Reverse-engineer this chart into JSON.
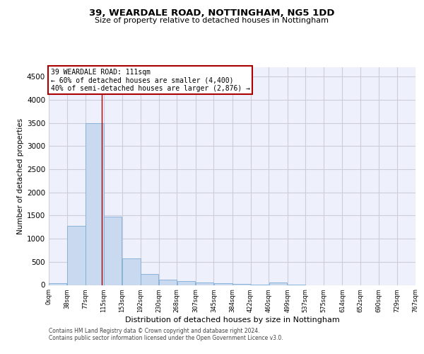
{
  "title1": "39, WEARDALE ROAD, NOTTINGHAM, NG5 1DD",
  "title2": "Size of property relative to detached houses in Nottingham",
  "xlabel": "Distribution of detached houses by size in Nottingham",
  "ylabel": "Number of detached properties",
  "footer1": "Contains HM Land Registry data © Crown copyright and database right 2024.",
  "footer2": "Contains public sector information licensed under the Open Government Licence v3.0.",
  "bar_edges": [
    0,
    38,
    77,
    115,
    153,
    192,
    230,
    268,
    307,
    345,
    384,
    422,
    460,
    499,
    537,
    575,
    614,
    652,
    690,
    729,
    767
  ],
  "bar_values": [
    40,
    1280,
    3500,
    1480,
    580,
    240,
    115,
    80,
    55,
    35,
    25,
    15,
    50,
    5,
    0,
    0,
    0,
    0,
    0,
    0
  ],
  "bar_color": "#c9d9f0",
  "bar_edgecolor": "#7eadd4",
  "grid_color": "#ccccdd",
  "vline_x": 111,
  "vline_color": "#aa0000",
  "annotation_line1": "39 WEARDALE ROAD: 111sqm",
  "annotation_line2": "← 60% of detached houses are smaller (4,400)",
  "annotation_line3": "40% of semi-detached houses are larger (2,876) →",
  "annotation_box_color": "#aa0000",
  "annotation_text_color": "#000000",
  "ylim": [
    0,
    4700
  ],
  "yticks": [
    0,
    500,
    1000,
    1500,
    2000,
    2500,
    3000,
    3500,
    4000,
    4500
  ],
  "tick_labels": [
    "0sqm",
    "38sqm",
    "77sqm",
    "115sqm",
    "153sqm",
    "192sqm",
    "230sqm",
    "268sqm",
    "307sqm",
    "345sqm",
    "384sqm",
    "422sqm",
    "460sqm",
    "499sqm",
    "537sqm",
    "575sqm",
    "614sqm",
    "652sqm",
    "690sqm",
    "729sqm",
    "767sqm"
  ],
  "bg_color": "#eef1fb",
  "fig_bg_color": "#ffffff"
}
